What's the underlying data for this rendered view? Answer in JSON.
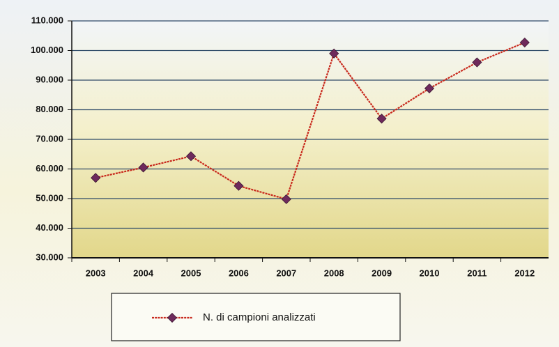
{
  "chart_data": {
    "type": "line",
    "categories": [
      "2003",
      "2004",
      "2005",
      "2006",
      "2007",
      "2008",
      "2009",
      "2010",
      "2011",
      "2012"
    ],
    "series": [
      {
        "name": "N. di campioni analizzati",
        "color": "#c8281c",
        "marker_color": "#6e2a5c",
        "values": [
          57000,
          60500,
          64300,
          54300,
          49800,
          99000,
          77000,
          87200,
          96000,
          102700
        ]
      }
    ],
    "ylim": [
      30000,
      110000
    ],
    "yticks": [
      {
        "value": 30000,
        "label": "30.000"
      },
      {
        "value": 40000,
        "label": "40.000"
      },
      {
        "value": 50000,
        "label": "50.000"
      },
      {
        "value": 60000,
        "label": "60.000"
      },
      {
        "value": 70000,
        "label": "70.000"
      },
      {
        "value": 80000,
        "label": "80.000"
      },
      {
        "value": 90000,
        "label": "90.000"
      },
      {
        "value": 100000,
        "label": "100.000"
      },
      {
        "value": 110000,
        "label": "110.000"
      }
    ],
    "grid": true,
    "legend": "bottom"
  }
}
